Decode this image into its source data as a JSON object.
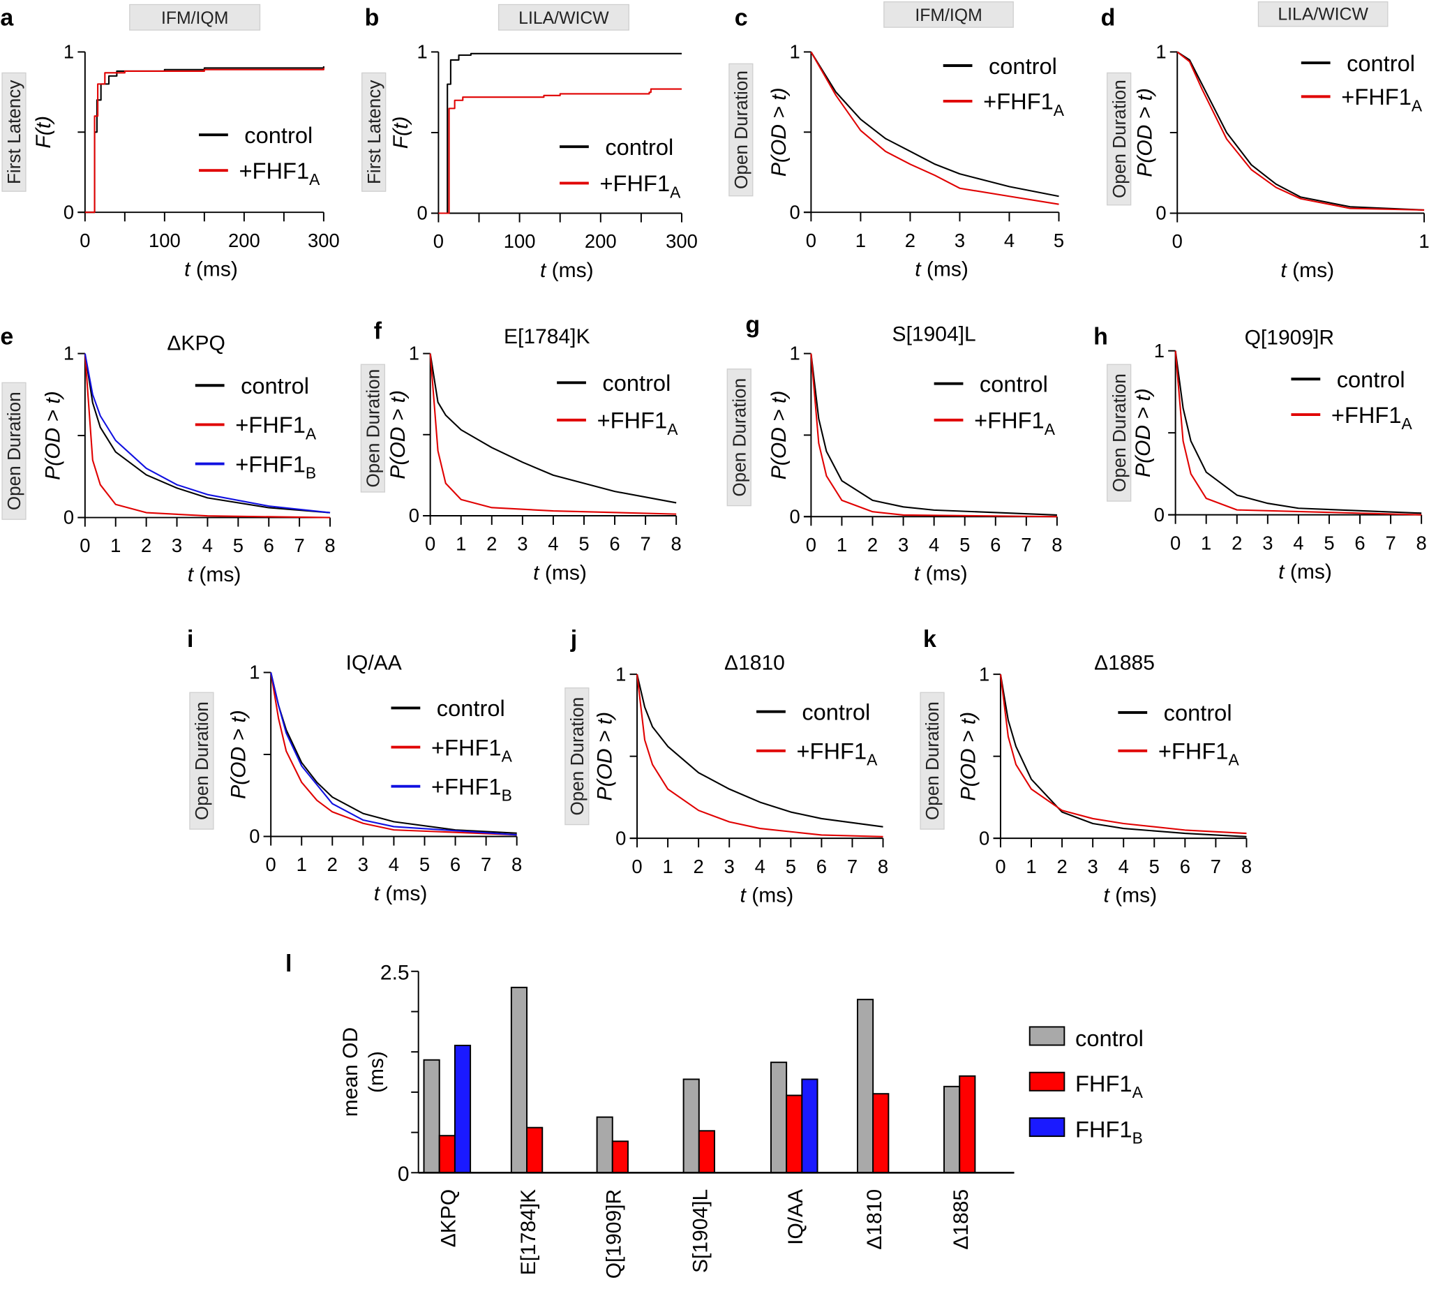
{
  "colors": {
    "control": "#000000",
    "FHF1A": "#e00000",
    "FHF1B": "#1010e0",
    "control_bar": "#a9a9a9",
    "FHF1A_bar": "#ff0000",
    "FHF1B_bar": "#1a1aff",
    "label_box": "#e6e6e6"
  },
  "chart_data": [
    {
      "panel": "a",
      "type": "line",
      "box_title": "IFM/IQM",
      "side_label": "First Latency",
      "ylabel": "F(t)",
      "xlabel": "t (ms)",
      "xlim": [
        0,
        300
      ],
      "ylim": [
        0,
        1
      ],
      "xticks": [
        0,
        100,
        200,
        300
      ],
      "yticks": [
        0,
        1
      ],
      "series": [
        {
          "name": "control",
          "color": "#000000",
          "x": [
            0,
            10,
            12,
            15,
            20,
            30,
            40,
            100,
            150,
            300
          ],
          "y": [
            0,
            0,
            0.5,
            0.7,
            0.8,
            0.85,
            0.88,
            0.89,
            0.9,
            0.91
          ]
        },
        {
          "name": "+FHF1",
          "sub": "A",
          "color": "#e00000",
          "x": [
            0,
            10,
            12,
            16,
            25,
            50,
            150,
            300
          ],
          "y": [
            0,
            0,
            0.6,
            0.8,
            0.87,
            0.88,
            0.89,
            0.9
          ]
        }
      ]
    },
    {
      "panel": "b",
      "type": "line",
      "box_title": "LILA/WICW",
      "side_label": "First Latency",
      "ylabel": "F(t)",
      "xlabel": "t (ms)",
      "xlim": [
        0,
        300
      ],
      "ylim": [
        0,
        1
      ],
      "xticks": [
        0,
        100,
        200,
        300
      ],
      "yticks": [
        0,
        1
      ],
      "series": [
        {
          "name": "control",
          "color": "#000000",
          "x": [
            0,
            10,
            11,
            15,
            25,
            40,
            300
          ],
          "y": [
            0,
            0,
            0.8,
            0.95,
            0.98,
            0.99,
            0.99
          ]
        },
        {
          "name": "+FHF1",
          "sub": "A",
          "color": "#e00000",
          "x": [
            0,
            12,
            13,
            20,
            30,
            130,
            150,
            260,
            262,
            300
          ],
          "y": [
            0,
            0,
            0.65,
            0.7,
            0.72,
            0.73,
            0.74,
            0.75,
            0.77,
            0.77
          ]
        }
      ]
    },
    {
      "panel": "c",
      "type": "line",
      "box_title": "IFM/IQM",
      "side_label": "Open Duration",
      "ylabel": "P(OD > t)",
      "xlabel": "t (ms)",
      "xlim": [
        0,
        5
      ],
      "ylim": [
        0,
        1
      ],
      "xticks": [
        0,
        1,
        2,
        3,
        4,
        5
      ],
      "yticks": [
        0,
        1
      ],
      "series": [
        {
          "name": "control",
          "color": "#000000",
          "x": [
            0,
            0.5,
            1,
            1.5,
            2,
            2.5,
            3,
            3.5,
            4,
            5
          ],
          "y": [
            1,
            0.75,
            0.58,
            0.46,
            0.38,
            0.3,
            0.24,
            0.2,
            0.16,
            0.1
          ]
        },
        {
          "name": "+FHF1",
          "sub": "A",
          "color": "#e00000",
          "x": [
            0,
            0.5,
            1,
            1.5,
            2,
            2.5,
            3,
            4,
            5
          ],
          "y": [
            1,
            0.73,
            0.51,
            0.38,
            0.3,
            0.23,
            0.15,
            0.1,
            0.05
          ]
        }
      ]
    },
    {
      "panel": "d",
      "type": "line",
      "box_title": "LILA/WICW",
      "side_label": "Open Duration",
      "ylabel": "P(OD > t)",
      "xlabel": "t (ms)",
      "xlim": [
        0,
        1
      ],
      "ylim": [
        0,
        1
      ],
      "xticks": [
        0,
        1
      ],
      "yticks": [
        0,
        1
      ],
      "series": [
        {
          "name": "control",
          "color": "#000000",
          "x": [
            0,
            0.05,
            0.1,
            0.2,
            0.3,
            0.4,
            0.5,
            0.7,
            1
          ],
          "y": [
            1,
            0.95,
            0.8,
            0.5,
            0.3,
            0.18,
            0.1,
            0.04,
            0.02
          ]
        },
        {
          "name": "+FHF1",
          "sub": "A",
          "color": "#e00000",
          "x": [
            0,
            0.05,
            0.1,
            0.2,
            0.3,
            0.4,
            0.5,
            0.7,
            1
          ],
          "y": [
            1,
            0.94,
            0.77,
            0.46,
            0.27,
            0.16,
            0.09,
            0.03,
            0.02
          ]
        }
      ]
    },
    {
      "panel": "e",
      "type": "line",
      "title": "ΔKPQ",
      "side_label": "Open Duration",
      "ylabel": "P(OD > t)",
      "xlabel": "t (ms)",
      "xlim": [
        0,
        8
      ],
      "ylim": [
        0,
        1
      ],
      "xticks": [
        0,
        1,
        2,
        3,
        4,
        5,
        6,
        7,
        8
      ],
      "yticks": [
        0,
        1
      ],
      "series": [
        {
          "name": "control",
          "color": "#000000",
          "x": [
            0,
            0.25,
            0.5,
            1,
            2,
            3,
            4,
            6,
            8
          ],
          "y": [
            1,
            0.7,
            0.55,
            0.4,
            0.26,
            0.18,
            0.12,
            0.06,
            0.03
          ]
        },
        {
          "name": "+FHF1",
          "sub": "A",
          "color": "#e00000",
          "x": [
            0,
            0.25,
            0.5,
            1,
            2,
            4,
            8
          ],
          "y": [
            1,
            0.35,
            0.2,
            0.08,
            0.03,
            0.01,
            0
          ]
        },
        {
          "name": "+FHF1",
          "sub": "B",
          "color": "#1010e0",
          "x": [
            0,
            0.25,
            0.5,
            1,
            2,
            3,
            4,
            6,
            8
          ],
          "y": [
            1,
            0.75,
            0.62,
            0.47,
            0.3,
            0.2,
            0.14,
            0.07,
            0.03
          ]
        }
      ]
    },
    {
      "panel": "f",
      "type": "line",
      "title": "E[1784]K",
      "side_label": "Open Duration",
      "ylabel": "P(OD > t)",
      "xlabel": "t (ms)",
      "xlim": [
        0,
        8
      ],
      "ylim": [
        0,
        1
      ],
      "xticks": [
        0,
        1,
        2,
        3,
        4,
        5,
        6,
        7,
        8
      ],
      "yticks": [
        0,
        1
      ],
      "series": [
        {
          "name": "control",
          "color": "#000000",
          "x": [
            0,
            0.25,
            0.5,
            1,
            2,
            3,
            4,
            6,
            8
          ],
          "y": [
            1,
            0.7,
            0.62,
            0.53,
            0.42,
            0.33,
            0.25,
            0.15,
            0.08
          ]
        },
        {
          "name": "+FHF1",
          "sub": "A",
          "color": "#e00000",
          "x": [
            0,
            0.25,
            0.5,
            1,
            2,
            4,
            8
          ],
          "y": [
            1,
            0.4,
            0.2,
            0.1,
            0.05,
            0.03,
            0.01
          ]
        }
      ]
    },
    {
      "panel": "g",
      "type": "line",
      "title": "S[1904]L",
      "side_label": "Open Duration",
      "ylabel": "P(OD > t)",
      "xlabel": "t (ms)",
      "xlim": [
        0,
        8
      ],
      "ylim": [
        0,
        1
      ],
      "xticks": [
        0,
        1,
        2,
        3,
        4,
        5,
        6,
        7,
        8
      ],
      "yticks": [
        0,
        1
      ],
      "series": [
        {
          "name": "control",
          "color": "#000000",
          "x": [
            0,
            0.25,
            0.5,
            1,
            2,
            3,
            4,
            8
          ],
          "y": [
            1,
            0.6,
            0.4,
            0.22,
            0.1,
            0.06,
            0.04,
            0.01
          ]
        },
        {
          "name": "+FHF1",
          "sub": "A",
          "color": "#e00000",
          "x": [
            0,
            0.25,
            0.5,
            1,
            2,
            3,
            8
          ],
          "y": [
            1,
            0.45,
            0.25,
            0.1,
            0.03,
            0.01,
            0
          ]
        }
      ]
    },
    {
      "panel": "h",
      "type": "line",
      "title": "Q[1909]R",
      "side_label": "Open Duration",
      "ylabel": "P(OD > t)",
      "xlabel": "t (ms)",
      "xlim": [
        0,
        8
      ],
      "ylim": [
        0,
        1
      ],
      "xticks": [
        0,
        1,
        2,
        3,
        4,
        5,
        6,
        7,
        8
      ],
      "yticks": [
        0,
        1
      ],
      "series": [
        {
          "name": "control",
          "color": "#000000",
          "x": [
            0,
            0.25,
            0.5,
            1,
            2,
            3,
            4,
            8
          ],
          "y": [
            1,
            0.65,
            0.45,
            0.26,
            0.12,
            0.07,
            0.04,
            0.01
          ]
        },
        {
          "name": "+FHF1",
          "sub": "A",
          "color": "#e00000",
          "x": [
            0,
            0.25,
            0.5,
            1,
            2,
            8
          ],
          "y": [
            1,
            0.45,
            0.25,
            0.1,
            0.03,
            0
          ]
        }
      ]
    },
    {
      "panel": "i",
      "type": "line",
      "title": "IQ/AA",
      "side_label": "Open Duration",
      "ylabel": "P(OD > t)",
      "xlabel": "t (ms)",
      "xlim": [
        0,
        8
      ],
      "ylim": [
        0,
        1
      ],
      "xticks": [
        0,
        1,
        2,
        3,
        4,
        5,
        6,
        7,
        8
      ],
      "yticks": [
        0,
        1
      ],
      "series": [
        {
          "name": "control",
          "color": "#000000",
          "x": [
            0,
            0.25,
            0.5,
            1,
            1.5,
            2,
            3,
            4,
            6,
            8
          ],
          "y": [
            1,
            0.8,
            0.65,
            0.45,
            0.33,
            0.24,
            0.14,
            0.09,
            0.04,
            0.02
          ]
        },
        {
          "name": "+FHF1",
          "sub": "A",
          "color": "#e00000",
          "x": [
            0,
            0.25,
            0.5,
            1,
            1.5,
            2,
            3,
            4,
            8
          ],
          "y": [
            1,
            0.72,
            0.52,
            0.33,
            0.22,
            0.15,
            0.08,
            0.04,
            0.01
          ]
        },
        {
          "name": "+FHF1",
          "sub": "B",
          "color": "#1010e0",
          "x": [
            0,
            0.25,
            0.5,
            1,
            2,
            3,
            4,
            8
          ],
          "y": [
            1,
            0.8,
            0.63,
            0.43,
            0.2,
            0.1,
            0.06,
            0.01
          ]
        }
      ]
    },
    {
      "panel": "j",
      "type": "line",
      "title": "Δ1810",
      "side_label": "Open Duration",
      "ylabel": "P(OD > t)",
      "xlabel": "t (ms)",
      "xlim": [
        0,
        8
      ],
      "ylim": [
        0,
        1
      ],
      "xticks": [
        0,
        1,
        2,
        3,
        4,
        5,
        6,
        7,
        8
      ],
      "yticks": [
        0,
        1
      ],
      "series": [
        {
          "name": "control",
          "color": "#000000",
          "x": [
            0,
            0.25,
            0.5,
            1,
            2,
            3,
            4,
            5,
            6,
            8
          ],
          "y": [
            1,
            0.8,
            0.68,
            0.56,
            0.4,
            0.3,
            0.22,
            0.16,
            0.12,
            0.07
          ]
        },
        {
          "name": "+FHF1",
          "sub": "A",
          "color": "#e00000",
          "x": [
            0,
            0.25,
            0.5,
            1,
            2,
            3,
            4,
            6,
            8
          ],
          "y": [
            1,
            0.6,
            0.45,
            0.3,
            0.17,
            0.1,
            0.06,
            0.02,
            0.01
          ]
        }
      ]
    },
    {
      "panel": "k",
      "type": "line",
      "title": "Δ1885",
      "side_label": "Open Duration",
      "ylabel": "P(OD > t)",
      "xlabel": "t (ms)",
      "xlim": [
        0,
        8
      ],
      "ylim": [
        0,
        1
      ],
      "xticks": [
        0,
        1,
        2,
        3,
        4,
        5,
        6,
        7,
        8
      ],
      "yticks": [
        0,
        1
      ],
      "series": [
        {
          "name": "control",
          "color": "#000000",
          "x": [
            0,
            0.25,
            0.5,
            1,
            2,
            3,
            4,
            6,
            8
          ],
          "y": [
            1,
            0.72,
            0.56,
            0.36,
            0.16,
            0.09,
            0.06,
            0.03,
            0.01
          ]
        },
        {
          "name": "+FHF1",
          "sub": "A",
          "color": "#e00000",
          "x": [
            0,
            0.25,
            0.5,
            1,
            2,
            3,
            4,
            6,
            8
          ],
          "y": [
            1,
            0.62,
            0.45,
            0.3,
            0.17,
            0.12,
            0.09,
            0.05,
            0.03
          ]
        }
      ]
    },
    {
      "panel": "l",
      "type": "bar",
      "ylabel": [
        "mean OD",
        "(ms)"
      ],
      "ylim": [
        0,
        2.5
      ],
      "ytick_labels": [
        0,
        2.5
      ],
      "yticks": [
        0,
        0.5,
        1,
        1.5,
        2,
        2.5
      ],
      "categories": [
        "ΔKPQ",
        "E[1784]K",
        "Q[1909]R",
        "S[1904]L",
        "IQ/AA",
        "Δ1810",
        "Δ1885"
      ],
      "legend_position": "right",
      "series": [
        {
          "name": "control",
          "color": "#a9a9a9",
          "values": [
            1.4,
            2.3,
            0.69,
            1.16,
            1.37,
            2.15,
            1.07
          ]
        },
        {
          "name": "FHF1",
          "sub": "A",
          "color": "#ff0000",
          "values": [
            0.46,
            0.56,
            0.39,
            0.52,
            0.96,
            0.98,
            1.2
          ]
        },
        {
          "name": "FHF1",
          "sub": "B",
          "color": "#1a1aff",
          "values": [
            1.58,
            null,
            null,
            null,
            1.16,
            null,
            null
          ]
        }
      ]
    }
  ]
}
